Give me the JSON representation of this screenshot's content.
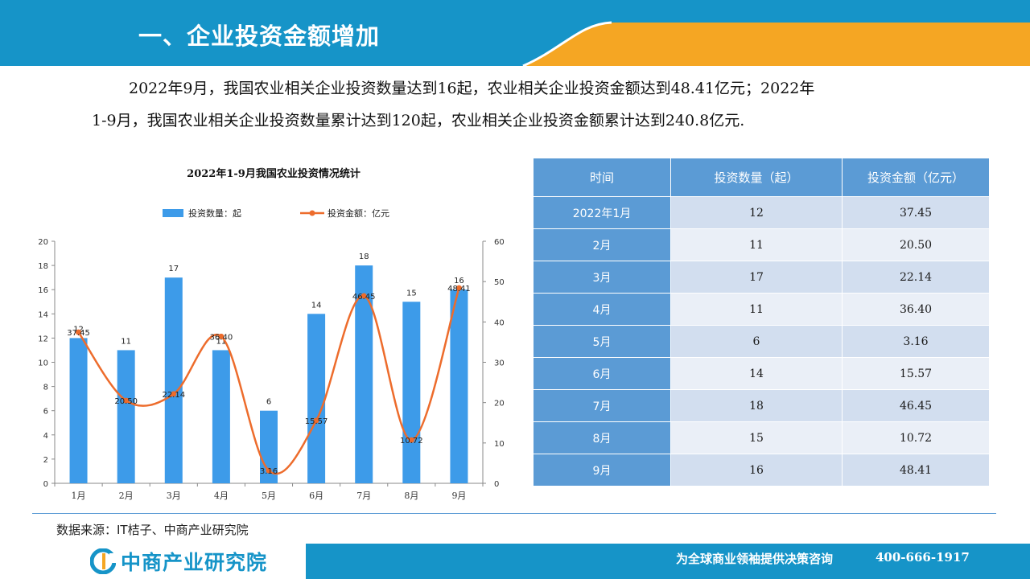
{
  "header": {
    "title": "一、企业投资金额增加"
  },
  "paragraph": {
    "line1": "2022年9月，我国农业相关企业投资数量达到16起，农业相关企业投资金额达到48.41亿元；2022年",
    "line2": "1-9月，我国农业相关企业投资数量累计达到120起，农业相关企业投资金额累计达到240.8亿元."
  },
  "chart_data": {
    "type": "bar",
    "title": "2022年1-9月我国农业投资情况统计",
    "categories": [
      "1月",
      "2月",
      "3月",
      "4月",
      "5月",
      "6月",
      "7月",
      "8月",
      "9月"
    ],
    "series": [
      {
        "name": "投资数量：起",
        "type": "bar",
        "axis": "left",
        "values": [
          12,
          11,
          17,
          11,
          6,
          14,
          18,
          15,
          16
        ],
        "labels": [
          "12",
          "11",
          "17",
          "11",
          "6",
          "14",
          "18",
          "15",
          "16"
        ],
        "color": "#3d9be9"
      },
      {
        "name": "投资金额：亿元",
        "type": "line",
        "axis": "right",
        "values": [
          37.45,
          20.5,
          22.14,
          36.4,
          3.16,
          15.57,
          46.45,
          10.72,
          48.41
        ],
        "labels": [
          "37.45",
          "20.50",
          "22.14",
          "36.40",
          "3.16",
          "15.57",
          "46.45",
          "10.72",
          "48.41"
        ],
        "color": "#ed6c2c"
      }
    ],
    "y_left": {
      "min": 0,
      "max": 20,
      "ticks": [
        "0",
        "2",
        "4",
        "6",
        "8",
        "10",
        "12",
        "14",
        "16",
        "18",
        "20"
      ]
    },
    "y_right": {
      "min": 0,
      "max": 60,
      "ticks": [
        "0",
        "10",
        "20",
        "30",
        "40",
        "50",
        "60"
      ]
    },
    "legend_position": "top"
  },
  "table": {
    "headers": [
      "时间",
      "投资数量（起）",
      "投资金额（亿元）"
    ],
    "rows": [
      [
        "2022年1月",
        "12",
        "37.45"
      ],
      [
        "2月",
        "11",
        "20.50"
      ],
      [
        "3月",
        "17",
        "22.14"
      ],
      [
        "4月",
        "11",
        "36.40"
      ],
      [
        "5月",
        "6",
        "3.16"
      ],
      [
        "6月",
        "14",
        "15.57"
      ],
      [
        "7月",
        "18",
        "46.45"
      ],
      [
        "8月",
        "15",
        "10.72"
      ],
      [
        "9月",
        "16",
        "48.41"
      ]
    ]
  },
  "source": "数据来源：IT桔子、中商产业研究院",
  "footer": {
    "logo_text": "中商产业研究院",
    "slogan": "为全球商业领袖提供决策咨询",
    "phone": "400-666-1917"
  },
  "colors": {
    "brand_blue": "#1694c8",
    "accent_orange": "#f5a623",
    "table_blue": "#5b9bd5"
  }
}
